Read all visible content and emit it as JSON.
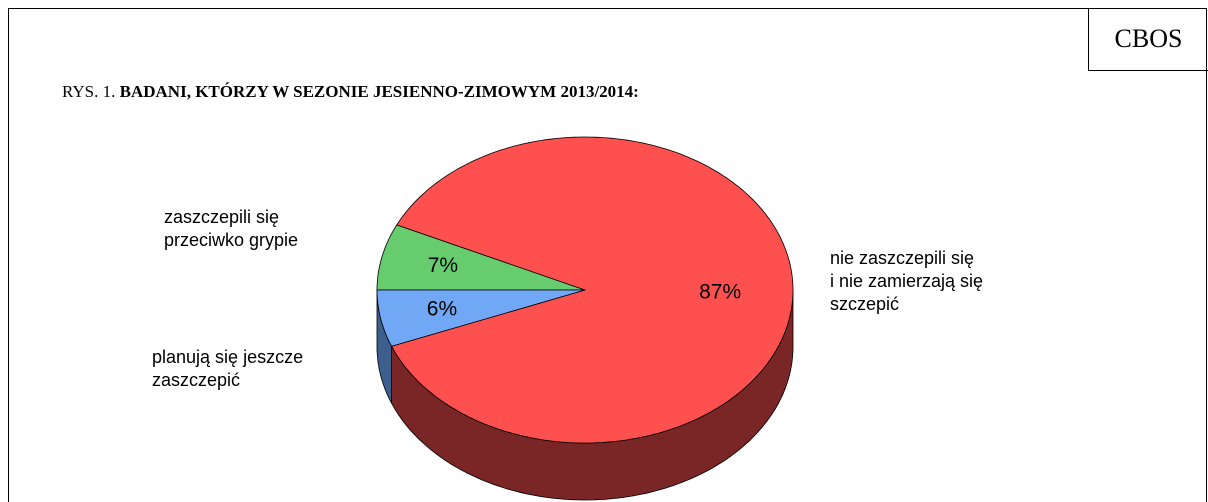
{
  "chart_data": {
    "type": "pie3d",
    "source": "CBOS",
    "figure_label": "RYS. 1.",
    "title": "BADANI, KTÓRZY W SEZONIE JESIENNO-ZIMOWYM 2013/2014:",
    "categories": [
      "zaszczepili się\nprzeciwko grypie",
      "nie zaszczepili się\ni nie zamierzają się\nszczepić",
      "planują się jeszcze\nzaszczepić"
    ],
    "values": [
      7,
      87,
      6
    ],
    "value_labels": [
      "7%",
      "87%",
      "6%"
    ],
    "colors": [
      "#66cc6e",
      "#ff5050",
      "#70a8f5"
    ],
    "side_colors": [
      "#3d7a42",
      "#7a2626",
      "#3c5f8e"
    ]
  }
}
